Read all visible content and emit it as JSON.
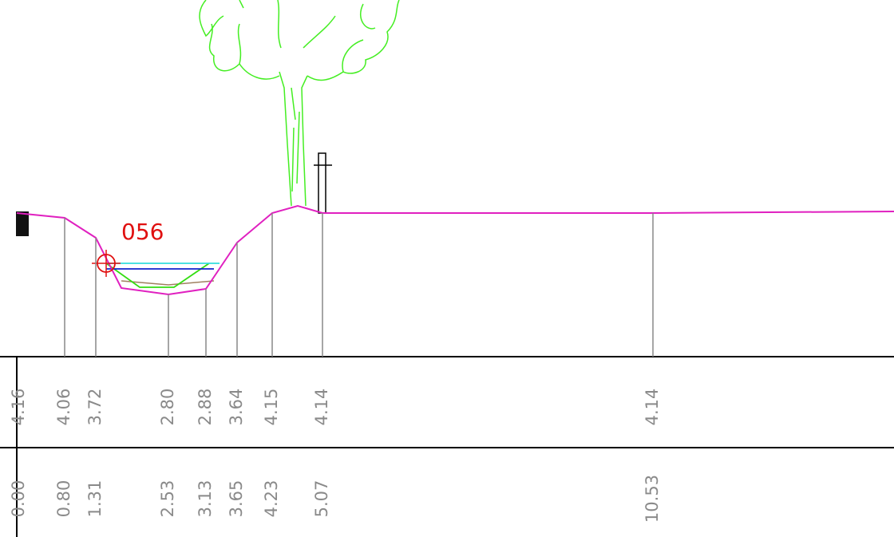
{
  "marker_label": "056",
  "elevations": [
    "4.16",
    "4.06",
    "3.72",
    "2.80",
    "2.88",
    "3.64",
    "4.15",
    "4.14",
    "4.14"
  ],
  "distances": [
    "0.00",
    "0.80",
    "1.31",
    "2.53",
    "3.13",
    "3.65",
    "4.23",
    "5.07",
    "10.53"
  ]
}
